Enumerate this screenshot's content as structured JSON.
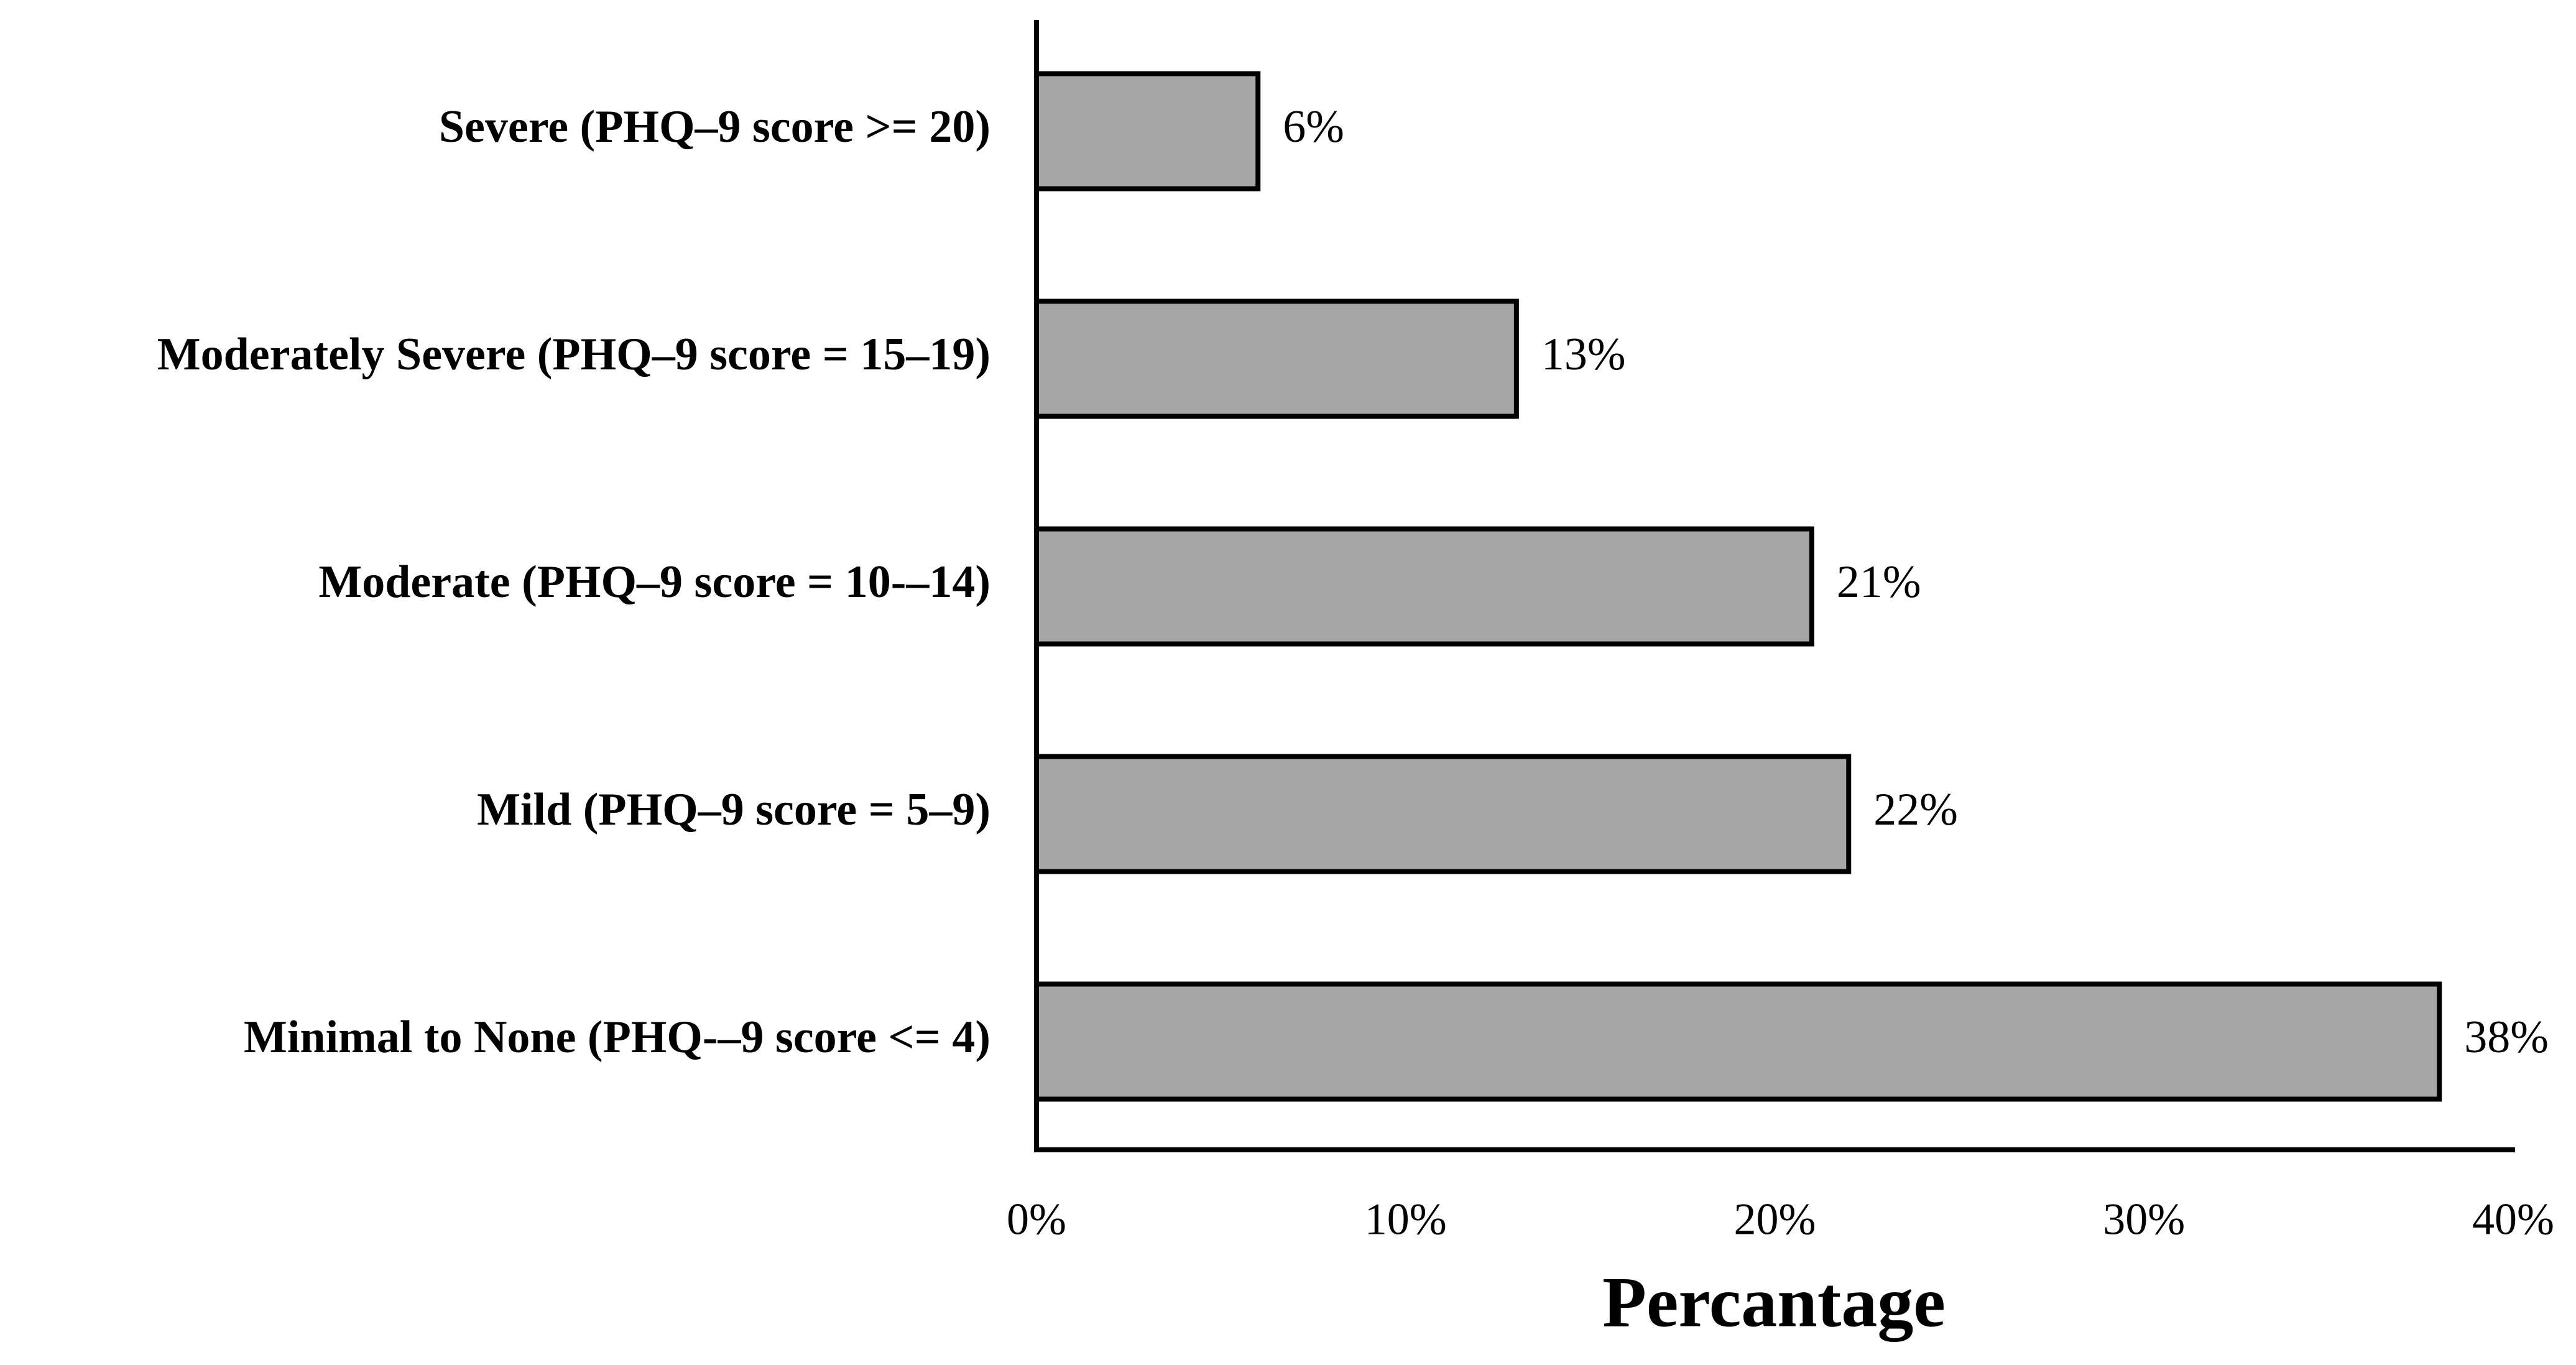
{
  "chart_data": {
    "type": "hbar",
    "x_label": "Percantage",
    "categories": [
      "Severe (PHQ–9 score >= 20)",
      "Moderately Severe (PHQ–9 score = 15–19)",
      "Moderate (PHQ–9 score = 10-–14)",
      "Mild (PHQ–9 score = 5–9)",
      "Minimal to None (PHQ-–9 score <= 4)"
    ],
    "values": [
      6,
      13,
      21,
      22,
      38
    ],
    "value_labels": [
      "6%",
      "13%",
      "21%",
      "22%",
      "38%"
    ],
    "color": "#a6a6a6",
    "xlim": [
      0,
      40
    ],
    "xticks": [
      {
        "value": 0,
        "label": "0%"
      },
      {
        "value": 10,
        "label": "10%"
      },
      {
        "value": 20,
        "label": "20%"
      },
      {
        "value": 30,
        "label": "30%"
      },
      {
        "value": 40,
        "label": "40%"
      }
    ],
    "grid": false
  }
}
